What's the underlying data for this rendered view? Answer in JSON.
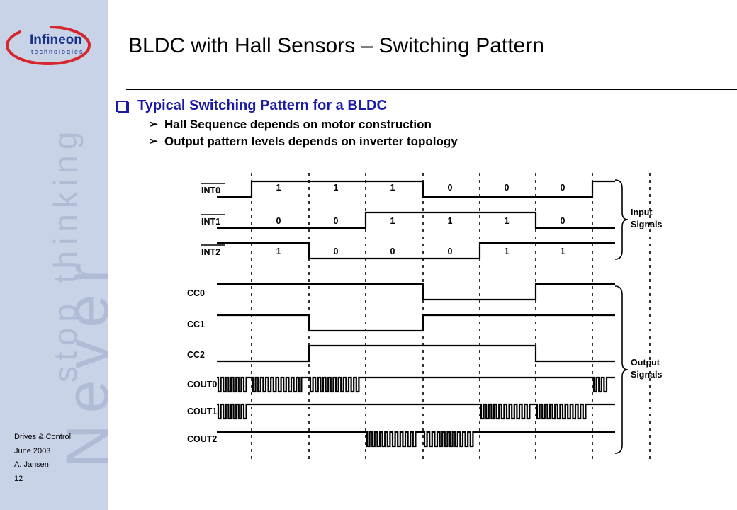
{
  "slide": {
    "title": "BLDC with Hall Sensors – Switching Pattern",
    "bullet_main": "Typical Switching Pattern for a BLDC",
    "sub_bullets": [
      "Hall Sequence depends on motor construction",
      "Output pattern levels depends on inverter topology"
    ]
  },
  "footer": {
    "dept": "Drives & Control",
    "date": "June 2003",
    "author": "A. Jansen",
    "page": "12"
  },
  "logo": {
    "name": "Infineon",
    "sub": "technologies"
  },
  "watermark": {
    "line1": "Never",
    "line2": "stop thinking"
  },
  "diagram": {
    "signals": [
      {
        "name": "INT0",
        "type": "level",
        "levels": [
          0,
          1,
          1,
          1,
          0,
          0,
          0,
          1
        ],
        "labels": [
          "1",
          "1",
          "1",
          "0",
          "0",
          "0"
        ]
      },
      {
        "name": "INT1",
        "type": "level",
        "levels": [
          0,
          0,
          0,
          1,
          1,
          1,
          0,
          0
        ],
        "labels": [
          "0",
          "0",
          "1",
          "1",
          "1",
          "0"
        ]
      },
      {
        "name": "INT2",
        "type": "level",
        "levels": [
          1,
          1,
          0,
          0,
          0,
          1,
          1,
          1
        ],
        "labels": [
          "1",
          "0",
          "0",
          "0",
          "1",
          "1"
        ]
      },
      {
        "name": "CC0",
        "type": "level",
        "levels": [
          1,
          1,
          1,
          1,
          0,
          0,
          1,
          1
        ]
      },
      {
        "name": "CC1",
        "type": "level",
        "levels": [
          1,
          1,
          0,
          0,
          1,
          1,
          1,
          1
        ]
      },
      {
        "name": "CC2",
        "type": "level",
        "levels": [
          0,
          0,
          1,
          1,
          1,
          1,
          0,
          0
        ]
      },
      {
        "name": "COUT0",
        "type": "pwm",
        "states": [
          "pwm",
          "pwm",
          "pwm",
          "high",
          "high",
          "high",
          "high",
          "pwm"
        ]
      },
      {
        "name": "COUT1",
        "type": "pwm",
        "states": [
          "pwm",
          "high",
          "high",
          "high",
          "high",
          "pwm",
          "pwm",
          "high"
        ]
      },
      {
        "name": "COUT2",
        "type": "pwm",
        "states": [
          "high",
          "high",
          "high",
          "pwm",
          "pwm",
          "high",
          "high",
          "high"
        ]
      }
    ],
    "groups": {
      "input": [
        "Input",
        "Signals"
      ],
      "output": [
        "Output",
        "Signals"
      ]
    }
  }
}
